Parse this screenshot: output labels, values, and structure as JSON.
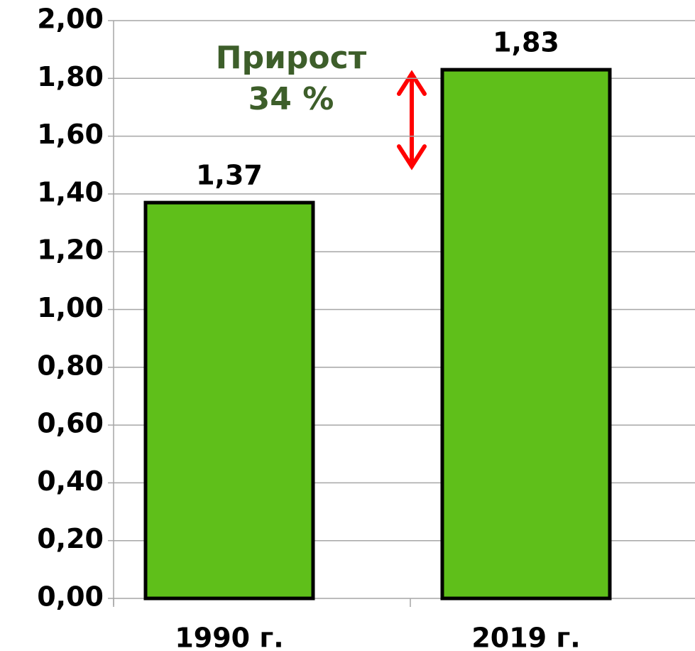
{
  "chart_data": {
    "type": "bar",
    "categories": [
      "1990 г.",
      "2019 г."
    ],
    "values": [
      1.37,
      1.83
    ],
    "value_labels": [
      "1,37",
      "1,83"
    ],
    "color": "#5fbf1a",
    "annotation": [
      "Прирост",
      "34 %"
    ],
    "ylim": [
      0,
      2
    ],
    "yticks": [
      {
        "value": 0,
        "label": "0,00"
      },
      {
        "value": 0.2,
        "label": "0,20"
      },
      {
        "value": 0.4,
        "label": "0,40"
      },
      {
        "value": 0.6,
        "label": "0,60"
      },
      {
        "value": 0.8,
        "label": "0,80"
      },
      {
        "value": 1,
        "label": "1,00"
      },
      {
        "value": 1.2,
        "label": "1,20"
      },
      {
        "value": 1.4,
        "label": "1,40"
      },
      {
        "value": 1.6,
        "label": "1,60"
      },
      {
        "value": 1.8,
        "label": "1,80"
      },
      {
        "value": 2,
        "label": "2,00"
      }
    ],
    "grid": true
  }
}
